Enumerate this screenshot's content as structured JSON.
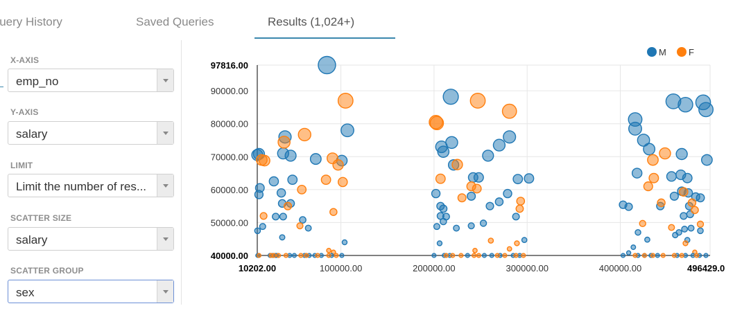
{
  "tabs": [
    {
      "label": "Query History"
    },
    {
      "label": "Saved Queries"
    },
    {
      "label": "Results (1,024+)"
    }
  ],
  "sidebar": {
    "fields": [
      {
        "label": "X-AXIS",
        "value": "emp_no"
      },
      {
        "label": "Y-AXIS",
        "value": "salary"
      },
      {
        "label": "LIMIT",
        "value": "Limit the number of res..."
      },
      {
        "label": "SCATTER SIZE",
        "value": "salary"
      },
      {
        "label": "SCATTER GROUP",
        "value": "sex"
      }
    ]
  },
  "colors": {
    "M": "#1f77b4",
    "F": "#ff7f0e"
  },
  "chart_data": {
    "type": "scatter",
    "xlim": [
      10202,
      496429
    ],
    "ylim": [
      40000,
      97816
    ],
    "x_ticks": [
      "10202.00",
      "100000.00",
      "200000.00",
      "300000.00",
      "400000.00",
      "496429.0"
    ],
    "x_tick_values": [
      10202,
      100000,
      200000,
      300000,
      400000,
      496429
    ],
    "y_ticks": [
      "40000.00",
      "50000.00",
      "60000.00",
      "70000.00",
      "80000.00",
      "90000.00",
      "97816.00"
    ],
    "y_tick_values": [
      40000,
      50000,
      60000,
      70000,
      80000,
      90000,
      97816
    ],
    "grid": true,
    "legend_position": "top-right",
    "series": [
      {
        "name": "M",
        "color": "#1f77b4",
        "points": [
          [
            85000,
            97816
          ],
          [
            10202,
            70500
          ],
          [
            12000,
            70800
          ],
          [
            40000,
            76000
          ],
          [
            38000,
            71000
          ],
          [
            46000,
            70300
          ],
          [
            107000,
            78000
          ],
          [
            13000,
            60500
          ],
          [
            12000,
            58500
          ],
          [
            28000,
            62500
          ],
          [
            36000,
            59000
          ],
          [
            48000,
            63000
          ],
          [
            73000,
            69300
          ],
          [
            101000,
            68800
          ],
          [
            37000,
            55800
          ],
          [
            46000,
            55800
          ],
          [
            16000,
            48800
          ],
          [
            30000,
            51800
          ],
          [
            38000,
            51800
          ],
          [
            59000,
            50800
          ],
          [
            65000,
            48300
          ],
          [
            10500,
            47500
          ],
          [
            37000,
            45500
          ],
          [
            104000,
            44000
          ],
          [
            218000,
            88200
          ],
          [
            219000,
            74300
          ],
          [
            208000,
            73000
          ],
          [
            210000,
            71500
          ],
          [
            221000,
            67500
          ],
          [
            270000,
            73500
          ],
          [
            281000,
            76000
          ],
          [
            258000,
            70300
          ],
          [
            202000,
            58800
          ],
          [
            207000,
            55000
          ],
          [
            210000,
            54200
          ],
          [
            207000,
            52000
          ],
          [
            242000,
            63700
          ],
          [
            240000,
            58000
          ],
          [
            248000,
            63700
          ],
          [
            260000,
            55000
          ],
          [
            270000,
            56300
          ],
          [
            279000,
            58800
          ],
          [
            290000,
            63200
          ],
          [
            302000,
            63400
          ],
          [
            210000,
            50300
          ],
          [
            213000,
            51800
          ],
          [
            203000,
            48800
          ],
          [
            224000,
            48300
          ],
          [
            240000,
            49000
          ],
          [
            253000,
            49800
          ],
          [
            288000,
            51800
          ],
          [
            206000,
            43700
          ],
          [
            297000,
            44700
          ],
          [
            416000,
            81300
          ],
          [
            416000,
            78500
          ],
          [
            425000,
            75000
          ],
          [
            431000,
            72300
          ],
          [
            457000,
            86800
          ],
          [
            470000,
            85800
          ],
          [
            489000,
            86500
          ],
          [
            492000,
            84300
          ],
          [
            466000,
            70800
          ],
          [
            493000,
            69000
          ],
          [
            418000,
            65000
          ],
          [
            455000,
            64000
          ],
          [
            465000,
            64500
          ],
          [
            472000,
            63500
          ],
          [
            466000,
            59500
          ],
          [
            473000,
            59000
          ],
          [
            486000,
            57500
          ],
          [
            403000,
            55400
          ],
          [
            409000,
            54800
          ],
          [
            443000,
            55000
          ],
          [
            458000,
            58000
          ],
          [
            481000,
            57800
          ],
          [
            474000,
            55000
          ],
          [
            419000,
            47000
          ],
          [
            429000,
            44800
          ],
          [
            468000,
            52000
          ],
          [
            475000,
            52500
          ],
          [
            459000,
            46200
          ],
          [
            469000,
            48000
          ],
          [
            476000,
            48300
          ],
          [
            463000,
            47000
          ],
          [
            486000,
            47500
          ],
          [
            472000,
            44700
          ],
          [
            414000,
            42500
          ],
          [
            409000,
            40800
          ]
        ],
        "sizes": [
          97816,
          70500,
          70800,
          76000,
          71000,
          70300,
          78000,
          60500,
          58500,
          62500,
          59000,
          63000,
          69300,
          68800,
          55800,
          55800,
          48800,
          51800,
          51800,
          50800,
          48300,
          47500,
          45500,
          44000,
          88200,
          74300,
          73000,
          71500,
          67500,
          73500,
          76000,
          70300,
          58800,
          55000,
          54200,
          52000,
          63700,
          58000,
          63700,
          55000,
          56300,
          58800,
          63200,
          63400,
          50300,
          51800,
          48800,
          48300,
          49000,
          49800,
          51800,
          43700,
          44700,
          81300,
          78500,
          75000,
          72300,
          86800,
          85800,
          86500,
          84300,
          70800,
          69000,
          65000,
          64000,
          64500,
          63500,
          59500,
          59000,
          57500,
          55400,
          54800,
          55000,
          58000,
          57800,
          55000,
          47000,
          44800,
          52000,
          52500,
          46200,
          48000,
          48300,
          47000,
          47500,
          44700,
          42500,
          40800
        ]
      },
      {
        "name": "F",
        "color": "#ff7f0e",
        "points": [
          [
            105000,
            87000
          ],
          [
            61000,
            76700
          ],
          [
            15000,
            69000
          ],
          [
            18000,
            68800
          ],
          [
            39000,
            74400
          ],
          [
            91000,
            69500
          ],
          [
            97000,
            67500
          ],
          [
            58000,
            60000
          ],
          [
            84000,
            63000
          ],
          [
            102000,
            62300
          ],
          [
            43000,
            55000
          ],
          [
            17000,
            52000
          ],
          [
            56000,
            49000
          ],
          [
            92000,
            53200
          ],
          [
            247000,
            87000
          ],
          [
            281000,
            83800
          ],
          [
            202000,
            80500
          ],
          [
            203000,
            80200
          ],
          [
            225000,
            67600
          ],
          [
            207000,
            63300
          ],
          [
            240000,
            61000
          ],
          [
            246000,
            60300
          ],
          [
            230000,
            57500
          ],
          [
            293000,
            56500
          ],
          [
            292000,
            54200
          ],
          [
            261000,
            44500
          ],
          [
            289000,
            43700
          ],
          [
            281000,
            42000
          ],
          [
            244000,
            41500
          ],
          [
            435000,
            69000
          ],
          [
            448000,
            71000
          ],
          [
            436000,
            63500
          ],
          [
            430000,
            61000
          ],
          [
            444000,
            56000
          ],
          [
            468000,
            59300
          ],
          [
            477000,
            56000
          ],
          [
            480000,
            53800
          ],
          [
            424000,
            49700
          ],
          [
            455000,
            48500
          ],
          [
            486000,
            49500
          ],
          [
            470000,
            43700
          ],
          [
            480000,
            41000
          ],
          [
            92000,
            41000
          ],
          [
            87000,
            41500
          ]
        ],
        "sizes": [
          87000,
          76700,
          69000,
          68800,
          74400,
          69500,
          67500,
          60000,
          63000,
          62300,
          55000,
          52000,
          49000,
          53200,
          87000,
          83800,
          80500,
          80200,
          67600,
          63300,
          61000,
          60300,
          57500,
          56500,
          54200,
          44500,
          43700,
          42000,
          41500,
          69000,
          71000,
          63500,
          61000,
          56000,
          59300,
          56000,
          53800,
          49700,
          48500,
          49500,
          43700,
          41000,
          41000,
          41500
        ]
      }
    ],
    "baseline_points": {
      "M": [
        10800,
        11500,
        24000,
        27000,
        30000,
        31000,
        45000,
        50000,
        61000,
        66000,
        72000,
        79000,
        90000,
        101000,
        200000,
        211000,
        217000,
        236000,
        254000,
        262000,
        271000,
        285000,
        292000,
        403000,
        419000,
        426000,
        433000,
        440000,
        461000,
        470000,
        478000,
        485000,
        492000
      ],
      "F": [
        12000,
        25000,
        28000,
        33000,
        41000,
        57000,
        63000,
        75000,
        87000,
        95000,
        213000,
        220000,
        229000,
        243000,
        248000,
        268000,
        276000,
        288000,
        296000,
        416000,
        426000,
        435000,
        446000,
        458000,
        466000,
        482000
      ]
    }
  }
}
